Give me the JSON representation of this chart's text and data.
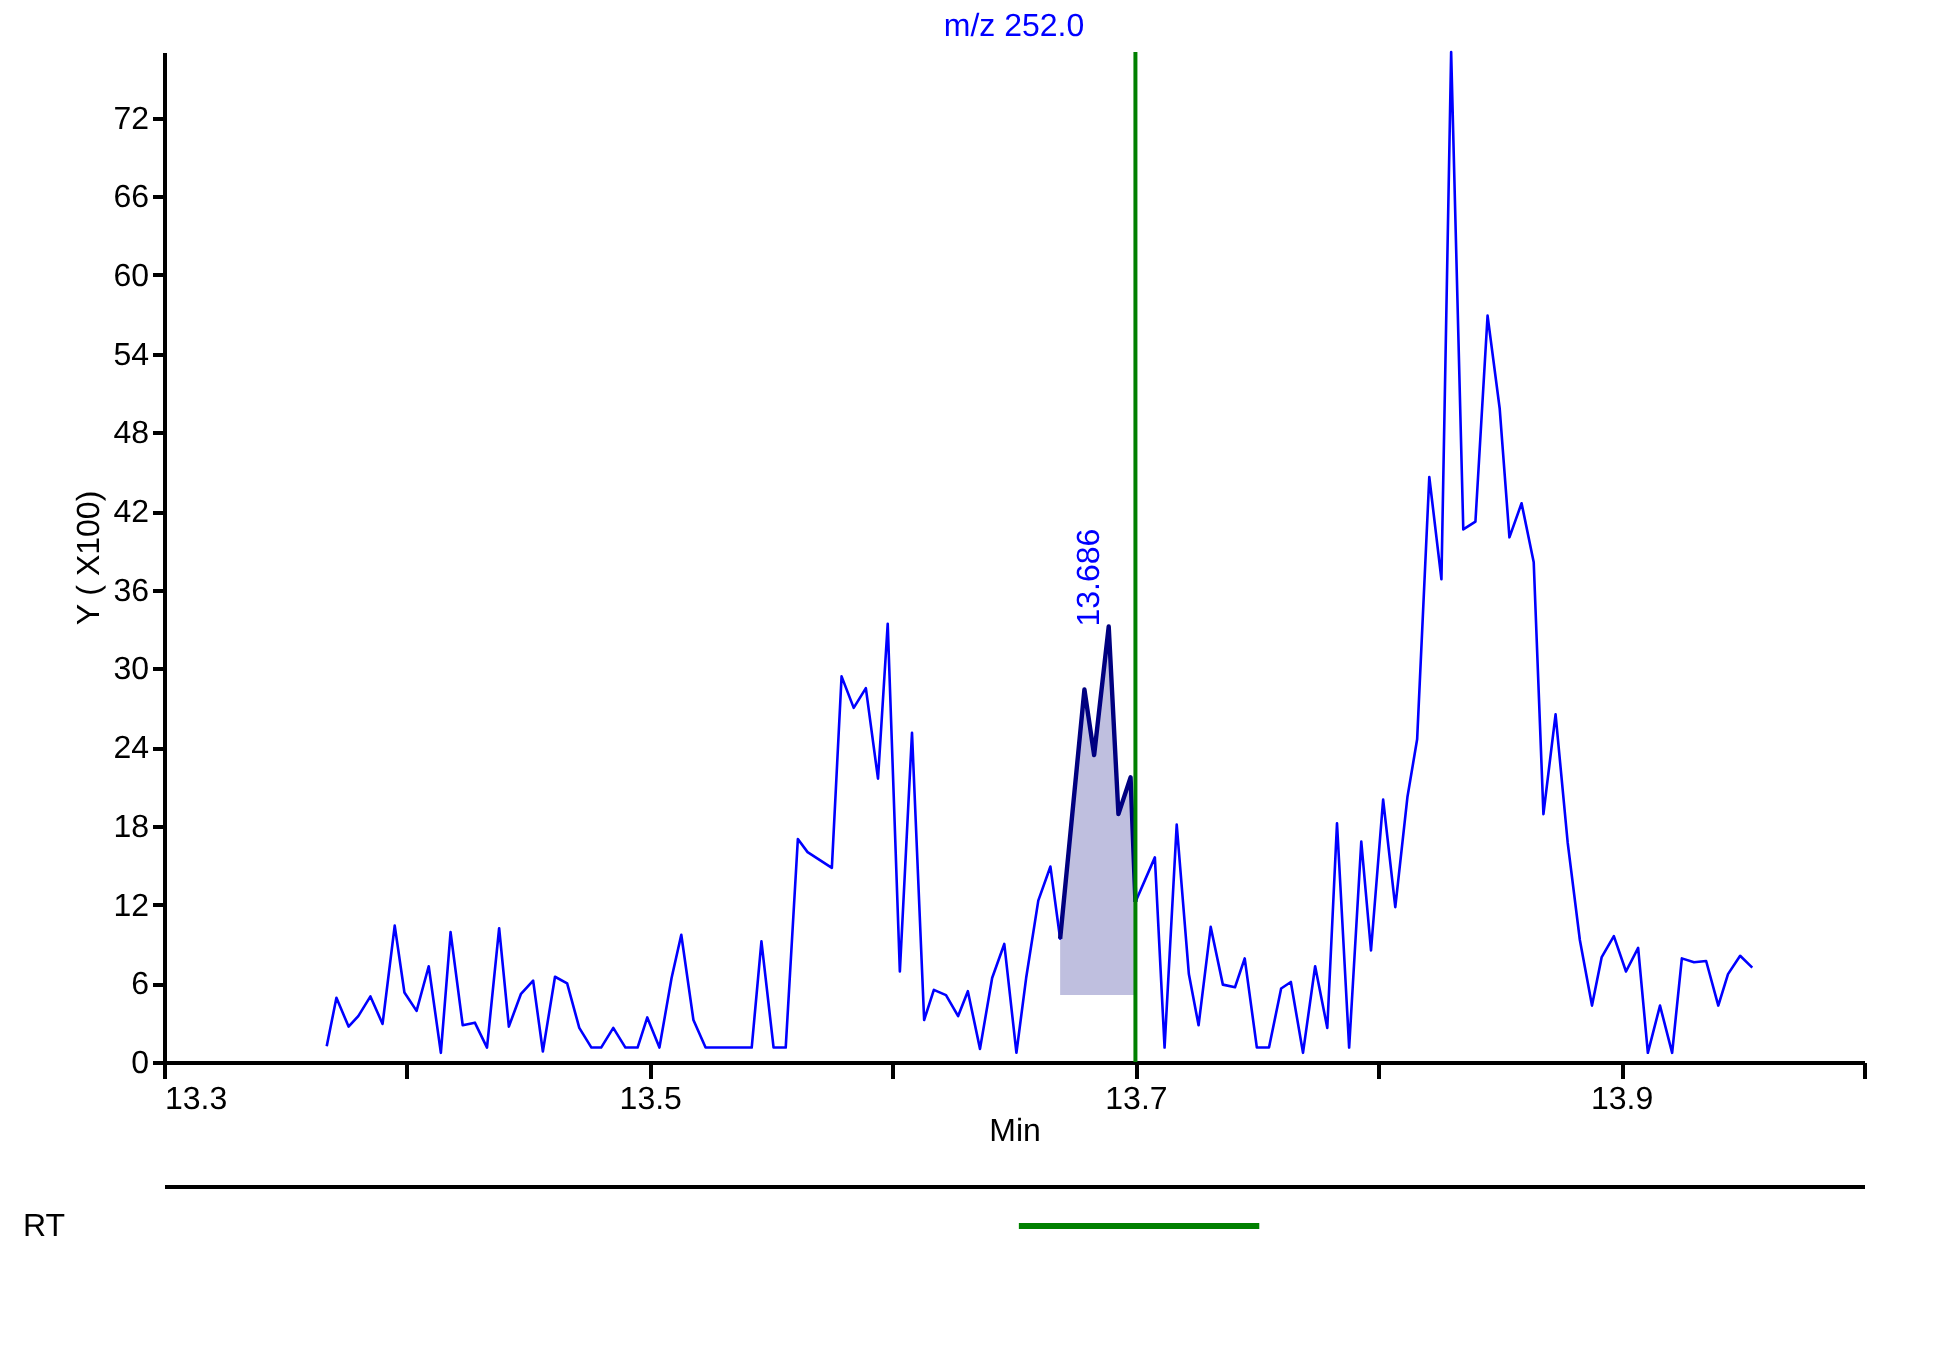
{
  "chart_data": [
    {
      "type": "line",
      "title": "m/z  252.0",
      "xlabel": "Min",
      "ylabel": "Y ( X100)",
      "xlim": [
        13.3,
        14.0
      ],
      "xticks": [
        13.3,
        {
          "value": 13.4,
          "label": null
        },
        13.5,
        {
          "value": 13.6,
          "label": null
        },
        13.7,
        {
          "value": 13.8,
          "label": null
        },
        13.9,
        {
          "value": 14.0,
          "label": null
        }
      ],
      "ylim": [
        0,
        77
      ],
      "yticks": [
        0,
        6,
        12,
        18,
        24,
        30,
        36,
        42,
        48,
        54,
        60,
        66,
        72
      ],
      "grid": false,
      "marker": "none",
      "line_style": "solid",
      "series": [
        {
          "type": "line",
          "color": "#0000ff",
          "x": [
            13.367,
            13.371,
            13.376,
            13.38,
            13.385,
            13.39,
            13.395,
            13.399,
            13.404,
            13.409,
            13.414,
            13.418,
            13.423,
            13.428,
            13.433,
            13.438,
            13.442,
            13.447,
            13.452,
            13.456,
            13.461,
            13.466,
            13.471,
            13.476,
            13.48,
            13.485,
            13.49,
            13.495,
            13.499,
            13.504,
            13.509,
            13.513,
            13.518,
            13.523,
            13.542,
            13.546,
            13.551,
            13.556,
            13.561,
            13.565,
            13.575,
            13.579,
            13.584,
            13.589,
            13.594,
            13.598,
            13.603,
            13.608,
            13.613,
            13.617,
            13.622,
            13.627,
            13.631,
            13.636,
            13.641,
            13.646,
            13.651,
            13.655,
            13.66,
            13.665,
            13.669,
            13.679,
            13.683,
            13.689,
            13.693,
            13.698,
            13.7,
            13.708,
            13.712,
            13.717,
            13.722,
            13.726,
            13.731,
            13.736,
            13.741,
            13.745,
            13.75,
            13.755,
            13.76,
            13.764,
            13.769,
            13.774,
            13.779,
            13.783,
            13.788,
            13.793,
            13.797,
            13.802,
            13.807,
            13.812,
            13.816,
            13.821,
            13.826,
            13.83,
            13.835,
            13.84,
            13.845,
            13.85,
            13.854,
            13.859,
            13.864,
            13.868,
            13.873,
            13.878,
            13.883,
            13.888,
            13.892,
            13.897,
            13.902,
            13.907,
            13.911,
            13.916,
            13.921,
            13.925,
            13.93,
            13.935,
            13.94,
            13.944,
            13.949,
            13.954
          ],
          "values": [
            1.2,
            4.9,
            2.7,
            3.5,
            5.0,
            2.9,
            10.4,
            5.3,
            3.9,
            7.3,
            0.7,
            9.9,
            2.8,
            3.0,
            1.1,
            10.2,
            2.7,
            5.2,
            6.2,
            0.8,
            6.5,
            6.0,
            2.6,
            1.1,
            1.1,
            2.6,
            1.1,
            1.1,
            3.4,
            1.1,
            6.4,
            9.7,
            3.2,
            1.1,
            1.1,
            9.2,
            1.1,
            1.1,
            17.0,
            16.0,
            14.8,
            29.4,
            27.0,
            28.5,
            21.6,
            33.4,
            6.9,
            25.1,
            3.2,
            5.5,
            5.1,
            3.5,
            5.4,
            1.0,
            6.4,
            9.0,
            0.7,
            6.4,
            12.3,
            14.9,
            9.4,
            28.4,
            23.4,
            33.2,
            18.9,
            21.7,
            12.2,
            15.6,
            1.1,
            18.1,
            6.7,
            2.8,
            10.3,
            5.9,
            5.7,
            7.9,
            1.1,
            1.1,
            5.6,
            6.1,
            0.7,
            7.3,
            2.6,
            18.2,
            1.1,
            16.8,
            8.5,
            20.0,
            11.8,
            20.2,
            24.6,
            44.6,
            36.8,
            77.0,
            40.6,
            41.2,
            56.9,
            49.8,
            40.0,
            42.6,
            38.1,
            18.9,
            26.5,
            16.7,
            9.3,
            4.3,
            8.0,
            9.6,
            6.9,
            8.7,
            0.7,
            4.3,
            0.7,
            7.9,
            7.6,
            7.7,
            4.3,
            6.7,
            8.1,
            7.2
          ]
        },
        {
          "type": "line",
          "color": "#000080",
          "x": [
            13.669,
            13.679,
            13.683,
            13.689,
            13.693,
            13.698,
            13.7
          ],
          "values": [
            9.4,
            28.4,
            23.4,
            33.2,
            18.9,
            21.7,
            12.2
          ],
          "lower": [
            5.1,
            5.1,
            5.1,
            5.1,
            5.1,
            5.1,
            5.1
          ],
          "upper": [
            9.4,
            28.4,
            23.4,
            33.2,
            18.9,
            21.7,
            12.2
          ]
        }
      ],
      "ref_lines": [
        {
          "axis": "x",
          "value": 13.7,
          "color": "#008000",
          "line_style": "solid"
        }
      ],
      "annotations": [
        {
          "text": "13.686",
          "x": 13.686,
          "y": 33.2
        }
      ]
    },
    {
      "type": "bar",
      "orientation": "horizontal",
      "categories": [
        "RT"
      ],
      "base": [
        13.652
      ],
      "values": [
        0.099
      ],
      "color": "#008000",
      "xlim": [
        13.3,
        14.0
      ],
      "tick_labels": "y"
    }
  ]
}
